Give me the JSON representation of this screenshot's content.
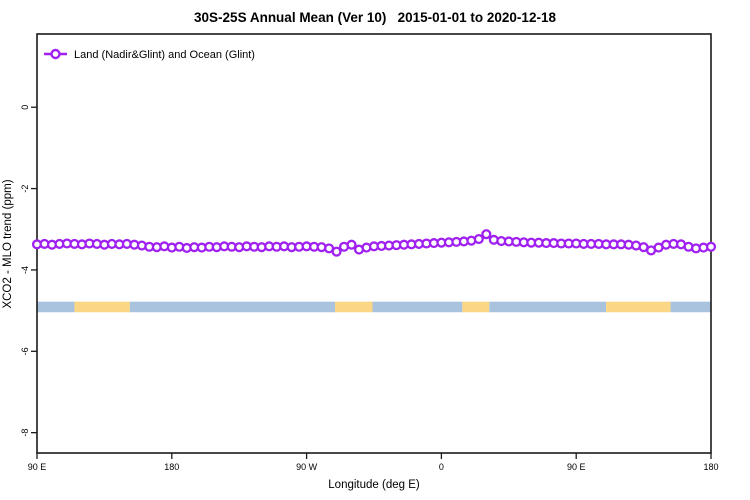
{
  "chart": {
    "title": "30S-25S Annual Mean (Ver 10)   2015-01-01 to 2020-12-18",
    "legend_label": "Land (Nadir&Glint) and Ocean (Glint)",
    "xlabel": "Longitude (deg E)",
    "ylabel": "XCO2 - MLO trend (ppm)"
  },
  "chart_data": {
    "type": "line",
    "title": "30S-25S Annual Mean (Ver 10)   2015-01-01 to 2020-12-18",
    "xlabel": "Longitude (deg E)",
    "ylabel": "XCO2 - MLO trend (ppm)",
    "xlim": [
      90,
      540
    ],
    "ylim": [
      -8.5,
      1.8
    ],
    "x_tick_positions": [
      90,
      180,
      270,
      360,
      450,
      540
    ],
    "x_tick_labels": [
      "90 E",
      "180",
      "90 W",
      "0",
      "90 E",
      "180"
    ],
    "y_tick_positions": [
      0,
      -2,
      -4,
      -6,
      -8
    ],
    "y_tick_labels": [
      "0",
      "-2",
      "-4",
      "-6",
      "-8"
    ],
    "grid": false,
    "legend_position": "top-left",
    "series": [
      {
        "name": "Land (Nadir&Glint) and Ocean (Glint)",
        "color": "#A020F0",
        "marker": "open-circle",
        "x": [
          90,
          95,
          100,
          105,
          110,
          115,
          120,
          125,
          130,
          135,
          140,
          145,
          150,
          155,
          160,
          165,
          170,
          175,
          180,
          185,
          190,
          195,
          200,
          205,
          210,
          215,
          220,
          225,
          230,
          235,
          240,
          245,
          250,
          255,
          260,
          265,
          270,
          275,
          280,
          285,
          290,
          295,
          300,
          305,
          310,
          315,
          320,
          325,
          330,
          335,
          340,
          345,
          350,
          355,
          360,
          365,
          370,
          375,
          380,
          385,
          390,
          395,
          400,
          405,
          410,
          415,
          420,
          425,
          430,
          435,
          440,
          445,
          450,
          455,
          460,
          465,
          470,
          475,
          480,
          485,
          490,
          495,
          500,
          505,
          510,
          515,
          520,
          525,
          530,
          535,
          540
        ],
        "y": [
          -3.37,
          -3.36,
          -3.38,
          -3.36,
          -3.35,
          -3.36,
          -3.37,
          -3.35,
          -3.36,
          -3.38,
          -3.36,
          -3.37,
          -3.36,
          -3.38,
          -3.4,
          -3.43,
          -3.44,
          -3.42,
          -3.45,
          -3.43,
          -3.46,
          -3.44,
          -3.45,
          -3.43,
          -3.44,
          -3.42,
          -3.43,
          -3.44,
          -3.42,
          -3.43,
          -3.44,
          -3.42,
          -3.43,
          -3.42,
          -3.44,
          -3.43,
          -3.42,
          -3.43,
          -3.44,
          -3.47,
          -3.55,
          -3.43,
          -3.38,
          -3.5,
          -3.45,
          -3.42,
          -3.41,
          -3.4,
          -3.39,
          -3.38,
          -3.37,
          -3.36,
          -3.35,
          -3.34,
          -3.33,
          -3.32,
          -3.31,
          -3.3,
          -3.28,
          -3.24,
          -3.12,
          -3.26,
          -3.29,
          -3.3,
          -3.31,
          -3.32,
          -3.33,
          -3.33,
          -3.34,
          -3.34,
          -3.35,
          -3.35,
          -3.35,
          -3.36,
          -3.36,
          -3.36,
          -3.37,
          -3.37,
          -3.37,
          -3.38,
          -3.4,
          -3.44,
          -3.52,
          -3.45,
          -3.38,
          -3.36,
          -3.37,
          -3.43,
          -3.47,
          -3.45,
          -3.43
        ]
      }
    ],
    "surface_band": {
      "description": "land/ocean surface-type strip",
      "y_top": -4.78,
      "y_bottom": -5.04,
      "colors": {
        "ocean": "#A9C3DE",
        "land": "#FBD685"
      },
      "segments": [
        {
          "from": 90,
          "to": 115,
          "type": "ocean"
        },
        {
          "from": 115,
          "to": 152,
          "type": "land"
        },
        {
          "from": 152,
          "to": 289,
          "type": "ocean"
        },
        {
          "from": 289,
          "to": 314,
          "type": "land"
        },
        {
          "from": 314,
          "to": 374,
          "type": "ocean"
        },
        {
          "from": 374,
          "to": 392,
          "type": "land"
        },
        {
          "from": 392,
          "to": 470,
          "type": "ocean"
        },
        {
          "from": 470,
          "to": 513,
          "type": "land"
        },
        {
          "from": 513,
          "to": 540,
          "type": "ocean"
        }
      ]
    }
  }
}
